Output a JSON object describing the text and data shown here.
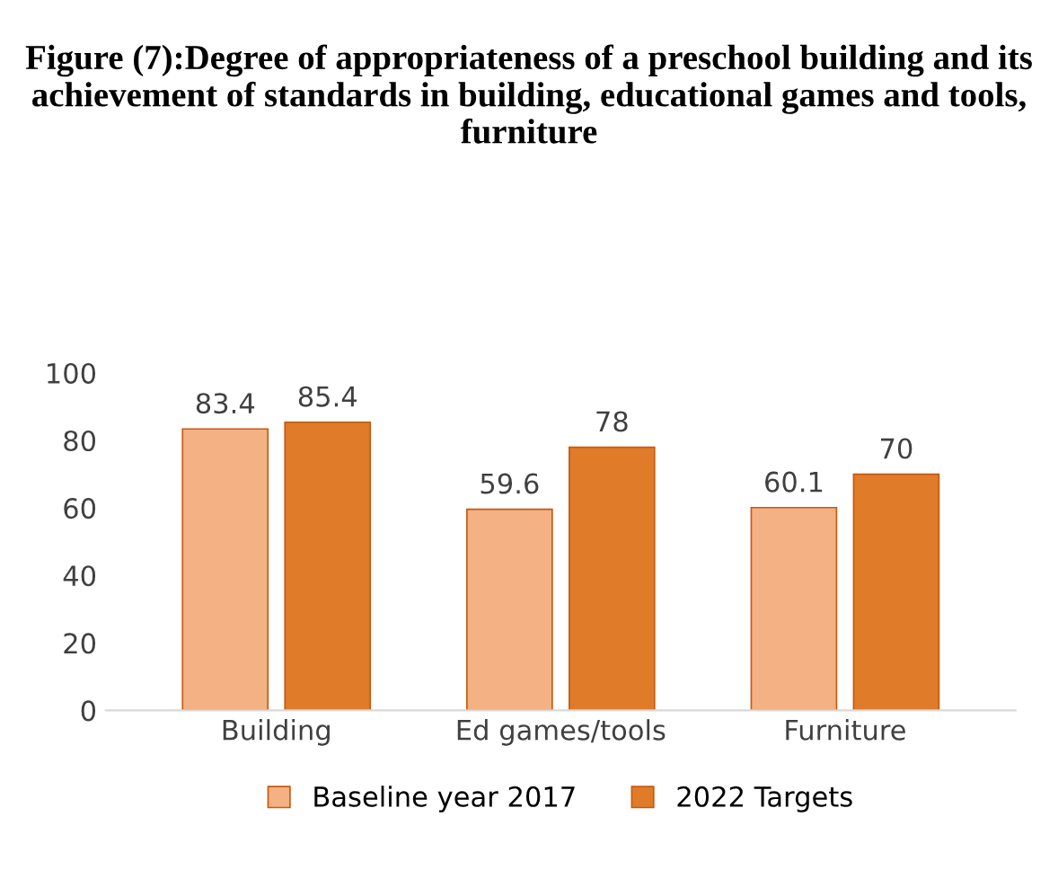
{
  "chart_data": {
    "type": "bar",
    "title": "Figure (7):Degree of appropriateness of a preschool building and its achievement of standards in building, educational games and tools, furniture",
    "categories": [
      "Building",
      "Ed games/tools",
      "Furniture"
    ],
    "series": [
      {
        "name": "Baseline year 2017",
        "color": "#f4b183",
        "values": [
          83.4,
          59.6,
          60.1
        ]
      },
      {
        "name": "2022 Targets",
        "color": "#e07b2a",
        "values": [
          85.4,
          78,
          70
        ]
      }
    ],
    "ylim": [
      0,
      100
    ],
    "yticks": [
      0,
      20,
      40,
      60,
      80,
      100
    ],
    "data_labels": true,
    "grid": false,
    "legend": "bottom"
  }
}
